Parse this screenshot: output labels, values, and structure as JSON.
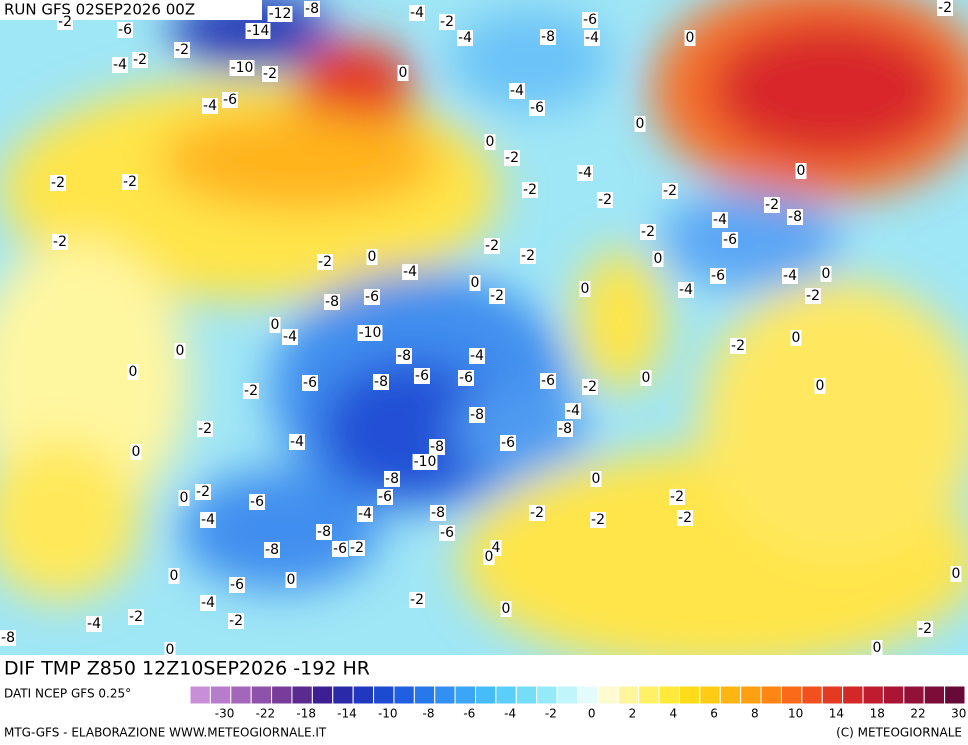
{
  "header": {
    "run": "RUN GFS 02SEP2026 00Z"
  },
  "map": {
    "title": "DIF TMP Z850 12Z10SEP2026 -192 HR",
    "contour_labels": [
      -2,
      -6,
      -12,
      -8,
      -14,
      -4,
      -2,
      -4,
      -6,
      -8,
      -4,
      0,
      -2,
      -2,
      -2,
      -4,
      -10,
      -2,
      0,
      -6,
      -4,
      -4,
      -6,
      0,
      0,
      -2,
      -4,
      0,
      -2,
      -2,
      -2,
      -2,
      -2,
      -4,
      -8,
      -2,
      -2,
      -6,
      -2,
      -2,
      -2,
      0,
      -2,
      0,
      -4,
      -6,
      -4,
      0,
      0,
      -2,
      0,
      -4,
      -2,
      -8,
      -6,
      0,
      -4,
      -10,
      0,
      -2,
      0,
      -8,
      -4,
      0,
      -6,
      -8,
      -6,
      -6,
      -6,
      -2,
      0,
      0,
      -2,
      -8,
      -4,
      -8,
      -2,
      -4,
      -8,
      -6,
      0,
      -10,
      -8,
      0,
      0,
      -2,
      -6,
      -6,
      -2,
      -4,
      -4,
      -8,
      -2,
      -2,
      -2,
      -8,
      -6,
      -8,
      -6,
      -2,
      4,
      0,
      0,
      -6,
      0,
      0,
      -4,
      -2,
      0,
      -2,
      -4,
      -2,
      -2,
      -8,
      0,
      0
    ]
  },
  "legend": {
    "source": "DATI NCEP GFS 0.25°",
    "colors": [
      "#c88fd8",
      "#b77ccb",
      "#a366bb",
      "#8e52aa",
      "#773d98",
      "#5a2b8f",
      "#3b1f93",
      "#2a2aa8",
      "#1f38bf",
      "#1c4ad0",
      "#1f5fe0",
      "#2778ec",
      "#3190f2",
      "#3aa6f5",
      "#46bcf8",
      "#5acff9",
      "#74def9",
      "#95eafa",
      "#c0f5fb",
      "#e4fbfb",
      "#fffbd0",
      "#fff59a",
      "#fff066",
      "#ffe93a",
      "#ffdc1a",
      "#ffcb14",
      "#ffb612",
      "#ff9f12",
      "#ff8514",
      "#fb6a18",
      "#f2501c",
      "#e43a22",
      "#d22828",
      "#bf1c2f",
      "#aa1535",
      "#931038",
      "#7d0c39",
      "#680a37"
    ],
    "ticks": [
      -30,
      -22,
      -18,
      -14,
      -10,
      -8,
      -6,
      -4,
      -2,
      0,
      2,
      4,
      6,
      8,
      10,
      14,
      18,
      22,
      30
    ]
  },
  "footer": {
    "left": "MTG-GFS - ELABORAZIONE WWW.METEOGIORNALE.IT",
    "right": "(C) METEOGIORNALE"
  }
}
